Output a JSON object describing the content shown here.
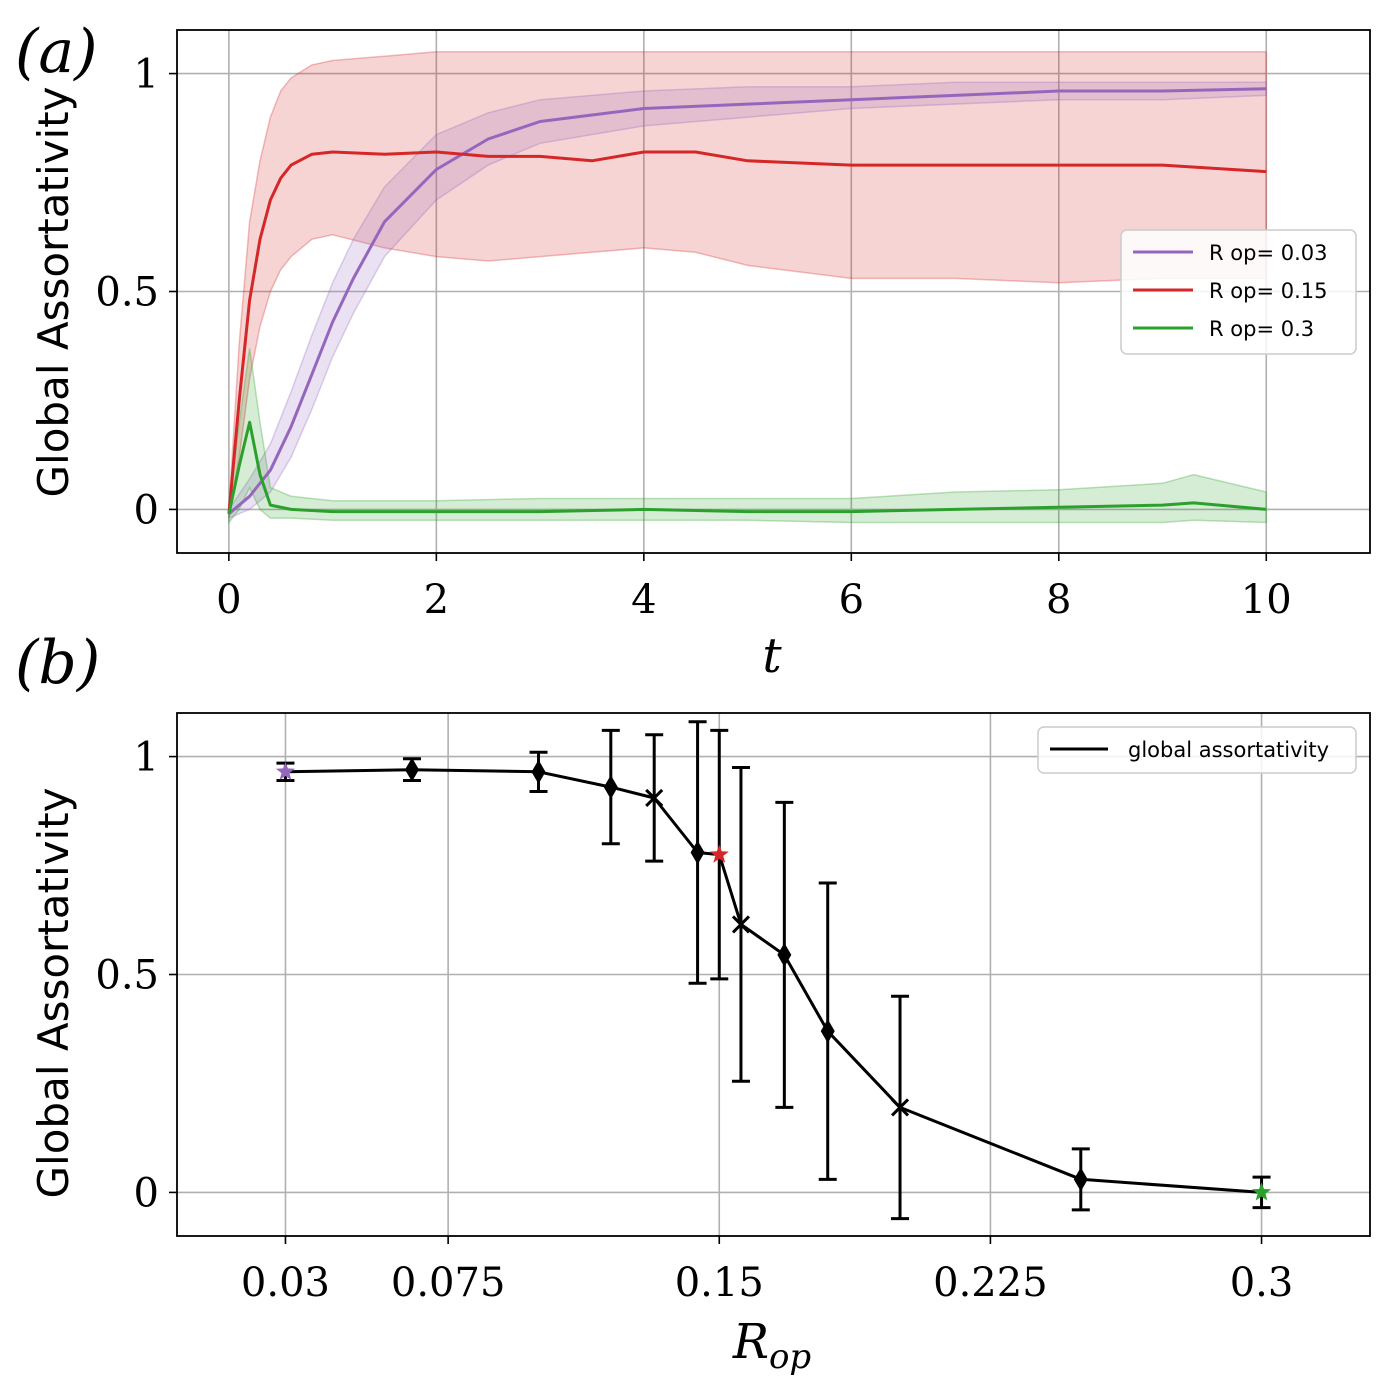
{
  "chart_data": [
    {
      "panel": "(a)",
      "type": "line",
      "xlabel": "t",
      "ylabel": "Global Assortativity",
      "xlim": [
        -0.5,
        11.0
      ],
      "ylim": [
        -0.1,
        1.1
      ],
      "xticks": [
        0,
        2,
        4,
        6,
        8,
        10
      ],
      "xtick_labels": [
        "0",
        "2",
        "4",
        "6",
        "8",
        "10"
      ],
      "yticks": [
        0,
        0.5,
        1
      ],
      "ytick_labels": [
        "0",
        "0.5",
        "1"
      ],
      "grid": true,
      "legend_position": "center-right",
      "series": [
        {
          "name": "R op= 0.03",
          "color": "#9467bd",
          "x": [
            0,
            0.2,
            0.4,
            0.6,
            0.8,
            1.0,
            1.2,
            1.5,
            2.0,
            2.5,
            3.0,
            4.0,
            5.0,
            6.0,
            7.0,
            8.0,
            9.0,
            10.0
          ],
          "y": [
            -0.01,
            0.03,
            0.09,
            0.19,
            0.31,
            0.43,
            0.53,
            0.66,
            0.78,
            0.85,
            0.89,
            0.92,
            0.93,
            0.94,
            0.95,
            0.96,
            0.96,
            0.965
          ],
          "lower": [
            -0.02,
            0.0,
            0.04,
            0.12,
            0.23,
            0.35,
            0.45,
            0.58,
            0.71,
            0.79,
            0.84,
            0.88,
            0.9,
            0.92,
            0.93,
            0.94,
            0.94,
            0.95
          ],
          "upper": [
            0.0,
            0.07,
            0.15,
            0.27,
            0.4,
            0.52,
            0.62,
            0.74,
            0.86,
            0.91,
            0.94,
            0.96,
            0.97,
            0.97,
            0.98,
            0.98,
            0.98,
            0.98
          ]
        },
        {
          "name": "R op= 0.15",
          "color": "#d62728",
          "x": [
            0,
            0.1,
            0.2,
            0.3,
            0.4,
            0.5,
            0.6,
            0.8,
            1.0,
            1.5,
            2.0,
            2.5,
            3.0,
            3.5,
            4.0,
            4.5,
            5.0,
            6.0,
            7.0,
            8.0,
            9.0,
            10.0
          ],
          "y": [
            -0.01,
            0.25,
            0.48,
            0.62,
            0.71,
            0.76,
            0.79,
            0.815,
            0.82,
            0.815,
            0.82,
            0.81,
            0.81,
            0.8,
            0.82,
            0.82,
            0.8,
            0.79,
            0.79,
            0.79,
            0.79,
            0.775
          ],
          "lower": [
            -0.02,
            0.12,
            0.3,
            0.42,
            0.5,
            0.55,
            0.58,
            0.62,
            0.63,
            0.6,
            0.58,
            0.57,
            0.58,
            0.59,
            0.6,
            0.59,
            0.56,
            0.53,
            0.53,
            0.52,
            0.53,
            0.53
          ],
          "upper": [
            0.0,
            0.38,
            0.66,
            0.8,
            0.9,
            0.96,
            0.99,
            1.02,
            1.03,
            1.04,
            1.05,
            1.05,
            1.05,
            1.05,
            1.05,
            1.05,
            1.05,
            1.05,
            1.05,
            1.05,
            1.05,
            1.05
          ]
        },
        {
          "name": "R op= 0.3",
          "color": "#2ca02c",
          "x": [
            0,
            0.1,
            0.2,
            0.3,
            0.4,
            0.6,
            1.0,
            2.0,
            3.0,
            4.0,
            5.0,
            6.0,
            7.0,
            8.0,
            9.0,
            9.3,
            10.0
          ],
          "y": [
            -0.01,
            0.1,
            0.2,
            0.08,
            0.01,
            0.0,
            -0.005,
            -0.005,
            -0.005,
            0.0,
            -0.005,
            -0.005,
            0.0,
            0.005,
            0.01,
            0.015,
            0.0
          ],
          "lower": [
            -0.03,
            0.0,
            0.05,
            0.0,
            -0.02,
            -0.02,
            -0.025,
            -0.025,
            -0.025,
            -0.025,
            -0.025,
            -0.03,
            -0.03,
            -0.03,
            -0.03,
            -0.025,
            -0.03
          ],
          "upper": [
            0.0,
            0.2,
            0.37,
            0.2,
            0.05,
            0.03,
            0.02,
            0.02,
            0.025,
            0.025,
            0.025,
            0.025,
            0.04,
            0.045,
            0.06,
            0.08,
            0.04
          ]
        }
      ]
    },
    {
      "panel": "(b)",
      "type": "line",
      "xlabel": "R_op",
      "xlabel_main": "R",
      "xlabel_sub": "op",
      "ylabel": "Global Assortativity",
      "xlim": [
        -0.0,
        0.33
      ],
      "ylim": [
        -0.1,
        1.1
      ],
      "xticks": [
        0.03,
        0.075,
        0.15,
        0.225,
        0.3
      ],
      "xtick_labels": [
        "0.03",
        "0.075",
        "0.15",
        "0.225",
        "0.3"
      ],
      "yticks": [
        0,
        0.5,
        1
      ],
      "ytick_labels": [
        "0",
        "0.5",
        "1"
      ],
      "grid": true,
      "legend_position": "top-right",
      "series": [
        {
          "name": "global assortativity",
          "color": "#000000",
          "x": [
            0.03,
            0.065,
            0.1,
            0.12,
            0.132,
            0.144,
            0.15,
            0.156,
            0.168,
            0.18,
            0.2,
            0.25,
            0.3
          ],
          "y": [
            0.965,
            0.97,
            0.965,
            0.93,
            0.905,
            0.78,
            0.775,
            0.615,
            0.545,
            0.37,
            0.195,
            0.03,
            0.0
          ],
          "err": [
            0.02,
            0.025,
            0.045,
            0.13,
            0.145,
            0.3,
            0.285,
            0.36,
            0.35,
            0.34,
            0.255,
            0.07,
            0.035
          ],
          "marker": [
            "star",
            "diamond",
            "diamond",
            "diamond",
            "x",
            "diamond",
            "star",
            "x",
            "diamond",
            "diamond",
            "x",
            "diamond",
            "star"
          ],
          "marker_color": [
            "#9467bd",
            "#000000",
            "#000000",
            "#000000",
            "#000000",
            "#000000",
            "#d62728",
            "#000000",
            "#000000",
            "#000000",
            "#000000",
            "#000000",
            "#2ca02c"
          ]
        }
      ]
    }
  ]
}
